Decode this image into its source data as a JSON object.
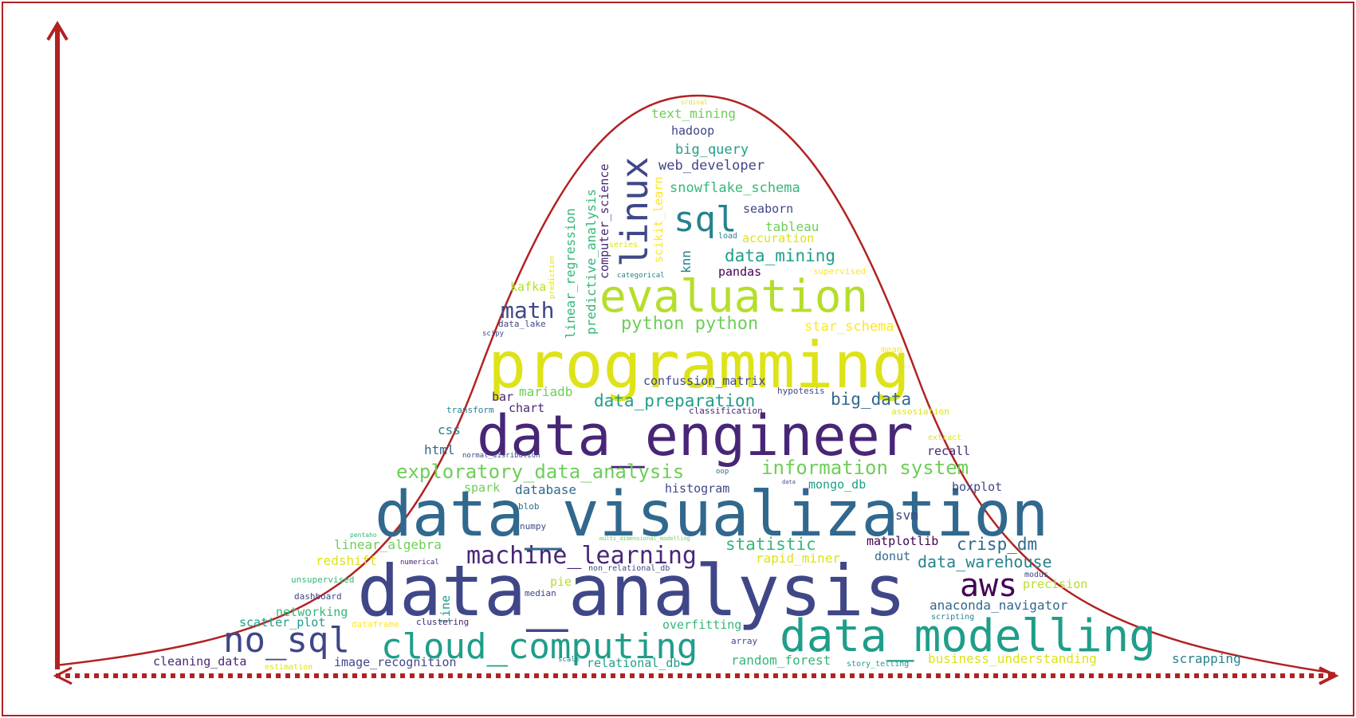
{
  "colors": {
    "frame": "#b22222",
    "palette": {
      "a": "#440154",
      "b": "#482677",
      "c": "#3f4788",
      "d": "#31688e",
      "e": "#26828e",
      "f": "#1f9e89",
      "g": "#35b779",
      "h": "#6ece58",
      "i": "#b5de2b",
      "j": "#dde318",
      "k": "#fde725"
    }
  },
  "words": [
    {
      "text": "data_analysis",
      "color": "c"
    },
    {
      "text": "data_visualization",
      "color": "d"
    },
    {
      "text": "data_engineer",
      "color": "b"
    },
    {
      "text": "programming",
      "color": "j"
    },
    {
      "text": "evaluation",
      "color": "i"
    },
    {
      "text": "data_modelling",
      "color": "f"
    },
    {
      "text": "cloud_computing",
      "color": "f"
    },
    {
      "text": "no_sql",
      "color": "c"
    },
    {
      "text": "linux",
      "color": "c"
    },
    {
      "text": "sql",
      "color": "e"
    },
    {
      "text": "aws",
      "color": "a"
    },
    {
      "text": "machine_learning",
      "color": "b"
    },
    {
      "text": "math",
      "color": "c"
    },
    {
      "text": "information system",
      "color": "h"
    },
    {
      "text": "exploratory_data_analysis",
      "color": "h"
    },
    {
      "text": "python python",
      "color": "h"
    },
    {
      "text": "data_mining",
      "color": "f"
    },
    {
      "text": "data_preparation",
      "color": "f"
    },
    {
      "text": "big_data",
      "color": "d"
    },
    {
      "text": "crisp_dm",
      "color": "d"
    },
    {
      "text": "data_warehouse",
      "color": "e"
    },
    {
      "text": "statistic",
      "color": "g"
    },
    {
      "text": "star_schema",
      "color": "k"
    },
    {
      "text": "snowflake_schema",
      "color": "g"
    },
    {
      "text": "web_developer",
      "color": "c"
    },
    {
      "text": "big_query",
      "color": "f"
    },
    {
      "text": "text_mining",
      "color": "h"
    },
    {
      "text": "hadoop",
      "color": "c"
    },
    {
      "text": "seaborn",
      "color": "c"
    },
    {
      "text": "tableau",
      "color": "h"
    },
    {
      "text": "accuration",
      "color": "j"
    },
    {
      "text": "pandas",
      "color": "a"
    },
    {
      "text": "knn",
      "color": "e"
    },
    {
      "text": "computer_science",
      "color": "b"
    },
    {
      "text": "predictive_analysis",
      "color": "g"
    },
    {
      "text": "linear_regression",
      "color": "g"
    },
    {
      "text": "scikit_learn",
      "color": "k"
    },
    {
      "text": "kafka",
      "color": "i"
    },
    {
      "text": "mariadb",
      "color": "h"
    },
    {
      "text": "confussion_matrix",
      "color": "c"
    },
    {
      "text": "chart",
      "color": "b"
    },
    {
      "text": "bar",
      "color": "b"
    },
    {
      "text": "css",
      "color": "e"
    },
    {
      "text": "html",
      "color": "d"
    },
    {
      "text": "recall",
      "color": "b"
    },
    {
      "text": "database",
      "color": "d"
    },
    {
      "text": "histogram",
      "color": "c"
    },
    {
      "text": "mongo_db",
      "color": "f"
    },
    {
      "text": "boxplot",
      "color": "c"
    },
    {
      "text": "spark",
      "color": "h"
    },
    {
      "text": "svm",
      "color": "c"
    },
    {
      "text": "linear_algebra",
      "color": "h"
    },
    {
      "text": "redshift",
      "color": "j"
    },
    {
      "text": "rapid_miner",
      "color": "j"
    },
    {
      "text": "matplotlib",
      "color": "a"
    },
    {
      "text": "donut",
      "color": "d"
    },
    {
      "text": "pie",
      "color": "i"
    },
    {
      "text": "anaconda_navigator",
      "color": "d"
    },
    {
      "text": "precision",
      "color": "i"
    },
    {
      "text": "networking",
      "color": "g"
    },
    {
      "text": "scatter_plot",
      "color": "f"
    },
    {
      "text": "overfitting",
      "color": "g"
    },
    {
      "text": "cleaning_data",
      "color": "b"
    },
    {
      "text": "image_recognition",
      "color": "c"
    },
    {
      "text": "relational_db",
      "color": "f"
    },
    {
      "text": "random_forest",
      "color": "g"
    },
    {
      "text": "business_understanding",
      "color": "j"
    },
    {
      "text": "scrapping",
      "color": "e"
    },
    {
      "text": "line",
      "color": "f"
    },
    {
      "text": "numpy",
      "color": "c"
    },
    {
      "text": "blob",
      "color": "d"
    },
    {
      "text": "unsupervised",
      "color": "g"
    },
    {
      "text": "dashboard",
      "color": "c"
    },
    {
      "text": "median",
      "color": "c"
    },
    {
      "text": "clustering",
      "color": "b"
    },
    {
      "text": "dataframe",
      "color": "k"
    },
    {
      "text": "estimation",
      "color": "j"
    },
    {
      "text": "array",
      "color": "c"
    },
    {
      "text": "scale",
      "color": "e"
    },
    {
      "text": "story_telling",
      "color": "f"
    },
    {
      "text": "scripting",
      "color": "e"
    },
    {
      "text": "modus",
      "color": "c"
    },
    {
      "text": "non_relational_db",
      "color": "c"
    },
    {
      "text": "numerical",
      "color": "b"
    },
    {
      "text": "multi_dimensional_modelling",
      "color": "h"
    },
    {
      "text": "pentaho",
      "color": "g"
    },
    {
      "text": "normal_disribution",
      "color": "c"
    },
    {
      "text": "transform",
      "color": "e"
    },
    {
      "text": "classification",
      "color": "b"
    },
    {
      "text": "hypotesis",
      "color": "c"
    },
    {
      "text": "assosiation",
      "color": "j"
    },
    {
      "text": "extract",
      "color": "j"
    },
    {
      "text": "oop",
      "color": "d"
    },
    {
      "text": "data",
      "color": "c"
    },
    {
      "text": "data_lake",
      "color": "c"
    },
    {
      "text": "scipy",
      "color": "c"
    },
    {
      "text": "mean",
      "color": "k"
    },
    {
      "text": "supervised",
      "color": "k"
    },
    {
      "text": "categorical",
      "color": "e"
    },
    {
      "text": "series",
      "color": "j"
    },
    {
      "text": "load",
      "color": "e"
    },
    {
      "text": "prediction",
      "color": "j"
    },
    {
      "text": "ordinal",
      "color": "j"
    }
  ]
}
